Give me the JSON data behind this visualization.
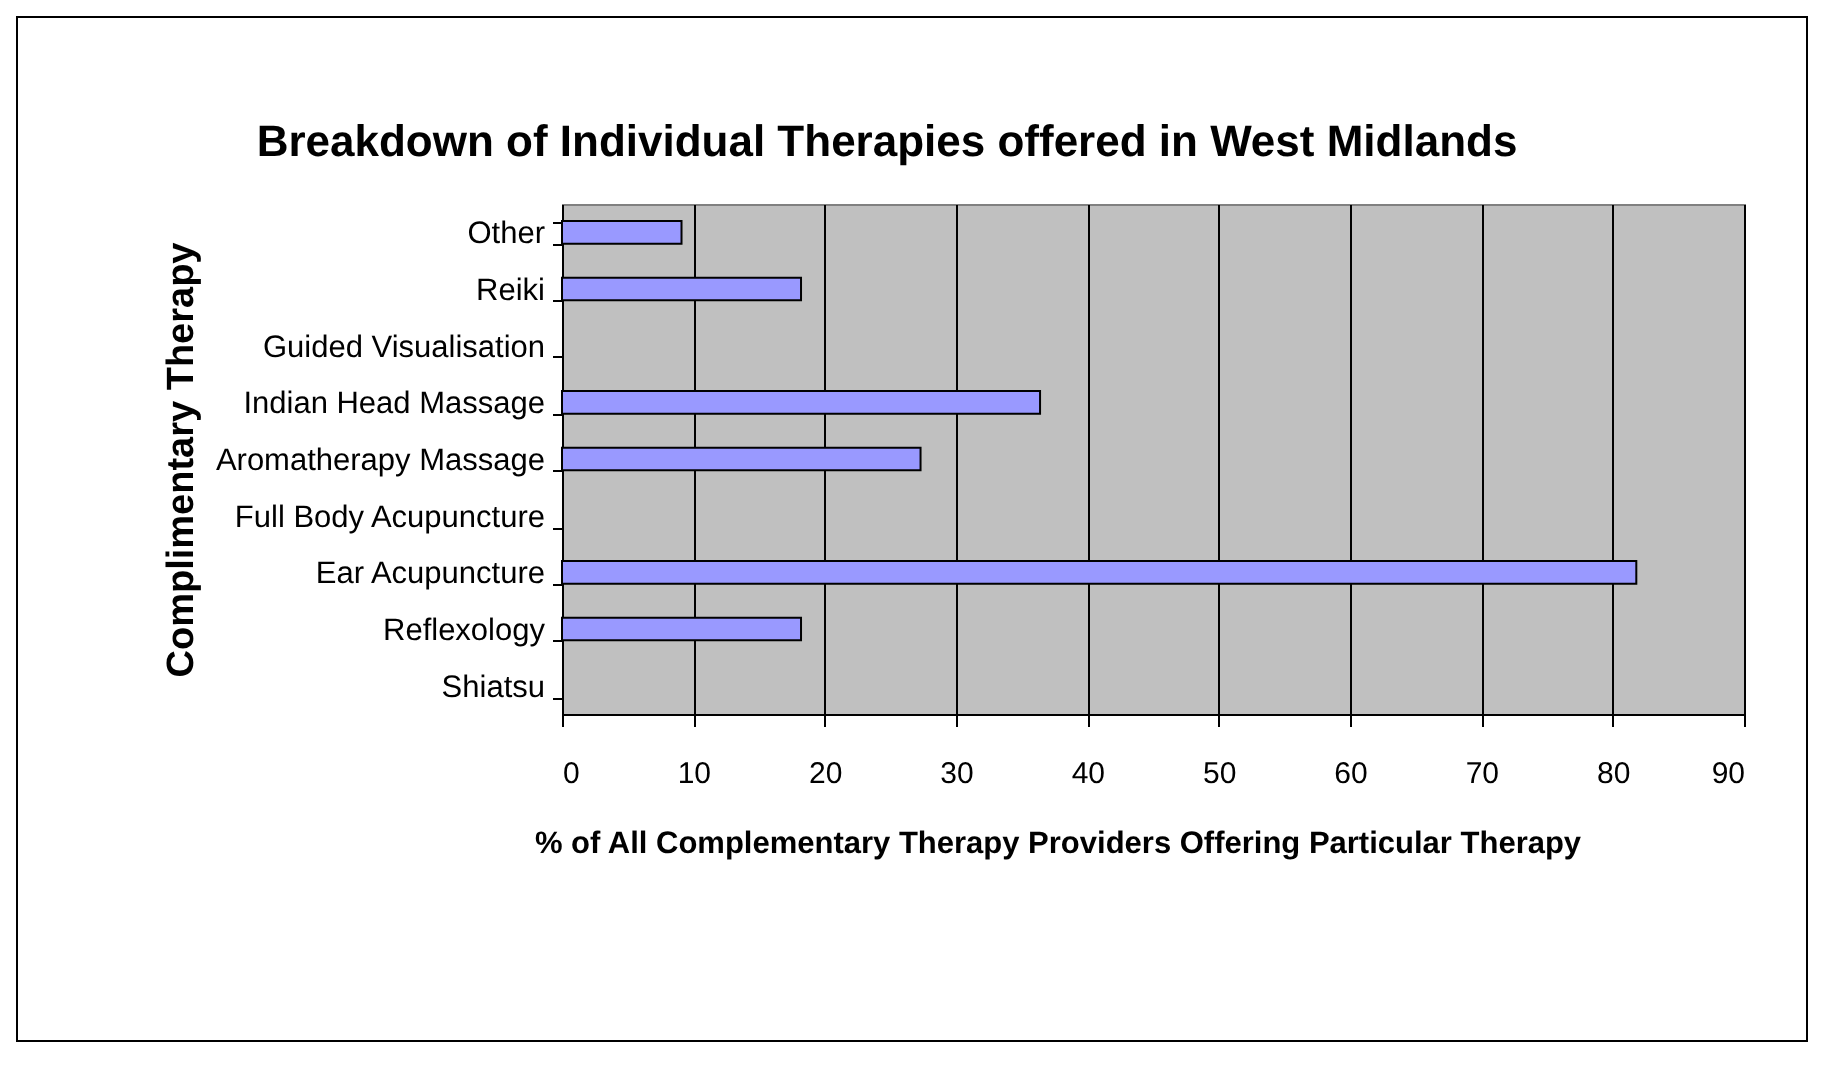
{
  "chart_data": {
    "type": "bar",
    "orientation": "horizontal",
    "title": "Breakdown of Individual Therapies offered in West Midlands",
    "xlabel": "% of All Complementary Therapy Providers Offering Particular Therapy",
    "ylabel": "Complimentary Therapy",
    "categories": [
      "Other",
      "Reiki",
      "Guided Visualisation",
      "Indian Head Massage",
      "Aromatherapy Massage",
      "Full Body Acupuncture",
      "Ear Acupuncture",
      "Reflexology",
      "Shiatsu"
    ],
    "values": [
      9.1,
      18.2,
      0,
      36.4,
      27.3,
      0,
      81.8,
      18.2,
      0
    ],
    "color": "#9999ff",
    "xlim": [
      0,
      90
    ],
    "xticks": [
      0,
      10,
      20,
      30,
      40,
      50,
      60,
      70,
      80,
      90
    ],
    "grid": "x"
  }
}
